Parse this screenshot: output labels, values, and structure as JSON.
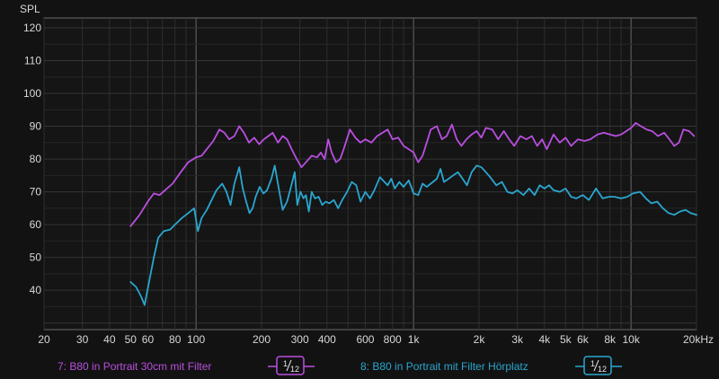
{
  "chart_data": {
    "type": "line",
    "ylabel": "SPL",
    "xscale": "log",
    "xlim": [
      20,
      20000
    ],
    "ylim": [
      28,
      123
    ],
    "grid": true,
    "y_ticks": [
      40,
      50,
      60,
      70,
      80,
      90,
      100,
      110,
      120
    ],
    "x_ticks": [
      {
        "v": 20,
        "label": "20"
      },
      {
        "v": 30,
        "label": "30"
      },
      {
        "v": 40,
        "label": "40"
      },
      {
        "v": 50,
        "label": "50"
      },
      {
        "v": 60,
        "label": "60"
      },
      {
        "v": 80,
        "label": "80"
      },
      {
        "v": 100,
        "label": "100"
      },
      {
        "v": 200,
        "label": "200"
      },
      {
        "v": 300,
        "label": "300"
      },
      {
        "v": 400,
        "label": "400"
      },
      {
        "v": 600,
        "label": "600"
      },
      {
        "v": 800,
        "label": "800"
      },
      {
        "v": 1000,
        "label": "1k"
      },
      {
        "v": 2000,
        "label": "2k"
      },
      {
        "v": 3000,
        "label": "3k"
      },
      {
        "v": 4000,
        "label": "4k"
      },
      {
        "v": 5000,
        "label": "5k"
      },
      {
        "v": 6000,
        "label": "6k"
      },
      {
        "v": 8000,
        "label": "8k"
      },
      {
        "v": 10000,
        "label": "10k"
      },
      {
        "v": 20000,
        "label": "20kHz"
      }
    ],
    "series": [
      {
        "name": "7: B80 in Portrait 30cm mit Filter",
        "color": "#b94fe0",
        "smoothing": {
          "num": "1",
          "den": "12"
        },
        "points": [
          [
            50,
            59.5
          ],
          [
            55,
            63
          ],
          [
            60,
            67
          ],
          [
            64,
            69.5
          ],
          [
            68,
            69
          ],
          [
            72,
            70.5
          ],
          [
            78,
            72.5
          ],
          [
            85,
            76
          ],
          [
            92,
            79
          ],
          [
            100,
            80.5
          ],
          [
            106,
            81
          ],
          [
            112,
            83
          ],
          [
            120,
            85.5
          ],
          [
            128,
            89
          ],
          [
            135,
            88
          ],
          [
            142,
            86
          ],
          [
            150,
            87
          ],
          [
            158,
            90
          ],
          [
            166,
            88
          ],
          [
            175,
            85
          ],
          [
            185,
            86.5
          ],
          [
            195,
            84.5
          ],
          [
            205,
            86
          ],
          [
            215,
            87
          ],
          [
            225,
            88
          ],
          [
            238,
            85
          ],
          [
            250,
            87
          ],
          [
            262,
            86
          ],
          [
            275,
            83
          ],
          [
            290,
            80
          ],
          [
            305,
            77.5
          ],
          [
            320,
            79
          ],
          [
            340,
            81
          ],
          [
            360,
            80.5
          ],
          [
            375,
            82
          ],
          [
            390,
            80
          ],
          [
            405,
            86
          ],
          [
            420,
            82
          ],
          [
            440,
            79
          ],
          [
            460,
            80
          ],
          [
            480,
            83.5
          ],
          [
            510,
            89
          ],
          [
            540,
            86.5
          ],
          [
            570,
            85
          ],
          [
            600,
            86
          ],
          [
            640,
            85
          ],
          [
            680,
            87
          ],
          [
            720,
            88
          ],
          [
            760,
            89
          ],
          [
            800,
            86
          ],
          [
            850,
            86.5
          ],
          [
            900,
            84
          ],
          [
            950,
            83
          ],
          [
            1000,
            82
          ],
          [
            1050,
            79
          ],
          [
            1100,
            81
          ],
          [
            1150,
            85
          ],
          [
            1200,
            89
          ],
          [
            1280,
            90
          ],
          [
            1350,
            86
          ],
          [
            1420,
            87
          ],
          [
            1500,
            90.5
          ],
          [
            1580,
            86
          ],
          [
            1660,
            84
          ],
          [
            1750,
            86
          ],
          [
            1850,
            87.5
          ],
          [
            1950,
            88.5
          ],
          [
            2050,
            86.5
          ],
          [
            2150,
            89.5
          ],
          [
            2300,
            89
          ],
          [
            2450,
            86
          ],
          [
            2600,
            88.5
          ],
          [
            2750,
            86
          ],
          [
            2900,
            84
          ],
          [
            3100,
            87
          ],
          [
            3300,
            86
          ],
          [
            3500,
            87
          ],
          [
            3700,
            84
          ],
          [
            3900,
            86
          ],
          [
            4100,
            83
          ],
          [
            4400,
            87.5
          ],
          [
            4700,
            85
          ],
          [
            5000,
            86.5
          ],
          [
            5300,
            84
          ],
          [
            5700,
            86
          ],
          [
            6100,
            85.5
          ],
          [
            6500,
            86
          ],
          [
            7000,
            87.5
          ],
          [
            7500,
            88
          ],
          [
            8000,
            87.5
          ],
          [
            8500,
            87
          ],
          [
            9000,
            87.5
          ],
          [
            9500,
            88.5
          ],
          [
            10000,
            89.5
          ],
          [
            10500,
            91
          ],
          [
            11100,
            90
          ],
          [
            11800,
            89
          ],
          [
            12500,
            88.5
          ],
          [
            13300,
            87
          ],
          [
            14200,
            88
          ],
          [
            15000,
            86
          ],
          [
            15800,
            84
          ],
          [
            16600,
            85
          ],
          [
            17400,
            89
          ],
          [
            18500,
            88.5
          ],
          [
            19500,
            87
          ]
        ]
      },
      {
        "name": "8: B80 in Portrait mit Filter Hörplatz",
        "color": "#2aa6cf",
        "smoothing": {
          "num": "1",
          "den": "12"
        },
        "points": [
          [
            50,
            42.5
          ],
          [
            53,
            41
          ],
          [
            56,
            38
          ],
          [
            58,
            35.5
          ],
          [
            61,
            43
          ],
          [
            64,
            50
          ],
          [
            67,
            56
          ],
          [
            71,
            58
          ],
          [
            76,
            58.5
          ],
          [
            80,
            60
          ],
          [
            86,
            62
          ],
          [
            92,
            63.5
          ],
          [
            98,
            65
          ],
          [
            102,
            58
          ],
          [
            106,
            62
          ],
          [
            112,
            64.5
          ],
          [
            118,
            67.5
          ],
          [
            124,
            70.5
          ],
          [
            132,
            72.5
          ],
          [
            138,
            70
          ],
          [
            144,
            66
          ],
          [
            150,
            72.5
          ],
          [
            158,
            77.5
          ],
          [
            164,
            71
          ],
          [
            170,
            67
          ],
          [
            176,
            63.5
          ],
          [
            182,
            65
          ],
          [
            188,
            68.5
          ],
          [
            196,
            71.5
          ],
          [
            204,
            69.5
          ],
          [
            212,
            70.5
          ],
          [
            222,
            74
          ],
          [
            230,
            78
          ],
          [
            240,
            71
          ],
          [
            250,
            64.5
          ],
          [
            262,
            67
          ],
          [
            272,
            71
          ],
          [
            284,
            76
          ],
          [
            292,
            66
          ],
          [
            302,
            70
          ],
          [
            312,
            68
          ],
          [
            320,
            69
          ],
          [
            330,
            64
          ],
          [
            340,
            70
          ],
          [
            352,
            68
          ],
          [
            366,
            68.5
          ],
          [
            380,
            66
          ],
          [
            395,
            67
          ],
          [
            410,
            66.5
          ],
          [
            430,
            67.5
          ],
          [
            450,
            65
          ],
          [
            470,
            67.5
          ],
          [
            495,
            70
          ],
          [
            520,
            73
          ],
          [
            545,
            72
          ],
          [
            570,
            67
          ],
          [
            600,
            70
          ],
          [
            630,
            68
          ],
          [
            660,
            70.5
          ],
          [
            700,
            74.5
          ],
          [
            735,
            73
          ],
          [
            760,
            72
          ],
          [
            790,
            74
          ],
          [
            820,
            71
          ],
          [
            860,
            73
          ],
          [
            900,
            71.5
          ],
          [
            950,
            73.5
          ],
          [
            1000,
            69.5
          ],
          [
            1050,
            69
          ],
          [
            1100,
            72.5
          ],
          [
            1150,
            71.5
          ],
          [
            1200,
            72.5
          ],
          [
            1280,
            74
          ],
          [
            1330,
            77
          ],
          [
            1380,
            73
          ],
          [
            1450,
            74
          ],
          [
            1520,
            75
          ],
          [
            1600,
            76
          ],
          [
            1680,
            74
          ],
          [
            1760,
            72
          ],
          [
            1850,
            76
          ],
          [
            1950,
            78
          ],
          [
            2050,
            77.5
          ],
          [
            2150,
            76
          ],
          [
            2250,
            74.5
          ],
          [
            2400,
            72
          ],
          [
            2550,
            73
          ],
          [
            2700,
            70
          ],
          [
            2850,
            69.5
          ],
          [
            3000,
            70.5
          ],
          [
            3200,
            69
          ],
          [
            3400,
            71
          ],
          [
            3600,
            69
          ],
          [
            3800,
            72
          ],
          [
            4000,
            71
          ],
          [
            4200,
            72
          ],
          [
            4400,
            70.5
          ],
          [
            4700,
            70
          ],
          [
            5000,
            71
          ],
          [
            5300,
            68.5
          ],
          [
            5600,
            68
          ],
          [
            6000,
            69
          ],
          [
            6400,
            67.5
          ],
          [
            6900,
            71
          ],
          [
            7400,
            68
          ],
          [
            7900,
            68.5
          ],
          [
            8400,
            68.5
          ],
          [
            9000,
            68
          ],
          [
            9600,
            68.5
          ],
          [
            10200,
            69.5
          ],
          [
            11000,
            70
          ],
          [
            11700,
            68
          ],
          [
            12400,
            66.5
          ],
          [
            13200,
            67
          ],
          [
            14000,
            65
          ],
          [
            14900,
            63.5
          ],
          [
            15800,
            63
          ],
          [
            16800,
            64
          ],
          [
            17800,
            64.5
          ],
          [
            18800,
            63.5
          ],
          [
            20000,
            63
          ]
        ]
      }
    ]
  }
}
